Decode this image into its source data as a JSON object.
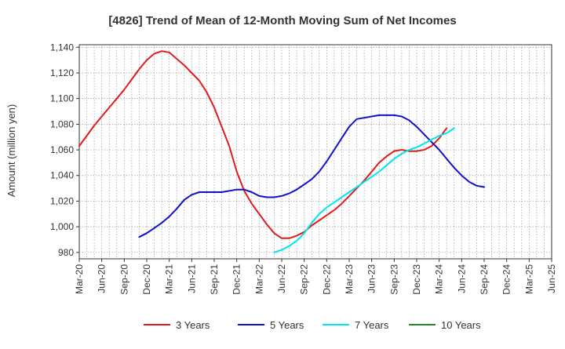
{
  "chart_data": {
    "type": "line",
    "title": "[4826]  Trend of Mean of 12-Month Moving Sum of Net Incomes",
    "ylabel": "Amount (million yen)",
    "xlabel": "",
    "ylim": [
      975,
      1142
    ],
    "yticks": [
      980,
      1000,
      1020,
      1040,
      1060,
      1080,
      1100,
      1120,
      1140
    ],
    "ytick_labels": [
      "980",
      "1,000",
      "1,020",
      "1,040",
      "1,060",
      "1,080",
      "1,100",
      "1,120",
      "1,140"
    ],
    "x_labels": [
      "Mar-20",
      "Jun-20",
      "Sep-20",
      "Dec-20",
      "Mar-21",
      "Jun-21",
      "Sep-21",
      "Dec-21",
      "Mar-22",
      "Jun-22",
      "Sep-22",
      "Dec-22",
      "Mar-23",
      "Jun-23",
      "Sep-23",
      "Dec-23",
      "Mar-24",
      "Jun-24",
      "Sep-24",
      "Dec-24",
      "Mar-25",
      "Jun-25"
    ],
    "grid": true,
    "legend_position": "bottom",
    "series": [
      {
        "name": "3 Years",
        "color": "#e31a1c",
        "start_index": 0,
        "values": [
          1063,
          1071,
          1079,
          1086,
          1093,
          1100,
          1107,
          1115,
          1123,
          1130,
          1135,
          1137,
          1136,
          1131,
          1126,
          1120,
          1114,
          1105,
          1093,
          1078,
          1063,
          1043,
          1028,
          1018,
          1010,
          1002,
          995,
          991,
          991,
          993,
          996,
          1001,
          1005,
          1009,
          1013,
          1018,
          1024,
          1030,
          1036,
          1043,
          1050,
          1055,
          1059,
          1060,
          1059,
          1059,
          1060,
          1063,
          1069,
          1077
        ]
      },
      {
        "name": "5 Years",
        "color": "#1010d0",
        "start_index": 8,
        "values": [
          992,
          995,
          999,
          1003,
          1008,
          1014,
          1021,
          1025,
          1027,
          1027,
          1027,
          1027,
          1028,
          1029,
          1029,
          1027,
          1024,
          1023,
          1023,
          1024,
          1026,
          1029,
          1033,
          1037,
          1043,
          1051,
          1060,
          1069,
          1078,
          1084,
          1085,
          1086,
          1087,
          1087,
          1087,
          1086,
          1083,
          1078,
          1072,
          1066,
          1060,
          1053,
          1046,
          1040,
          1035,
          1032,
          1031
        ]
      },
      {
        "name": "7 Years",
        "color": "#00e5ee",
        "start_index": 26,
        "values": [
          980,
          982,
          985,
          989,
          995,
          1003,
          1010,
          1015,
          1019,
          1023,
          1027,
          1031,
          1035,
          1039,
          1043,
          1048,
          1053,
          1057,
          1060,
          1062,
          1065,
          1068,
          1071,
          1073,
          1077
        ]
      },
      {
        "name": "10 Years",
        "color": "#228b22",
        "start_index": 0,
        "values": []
      }
    ]
  }
}
